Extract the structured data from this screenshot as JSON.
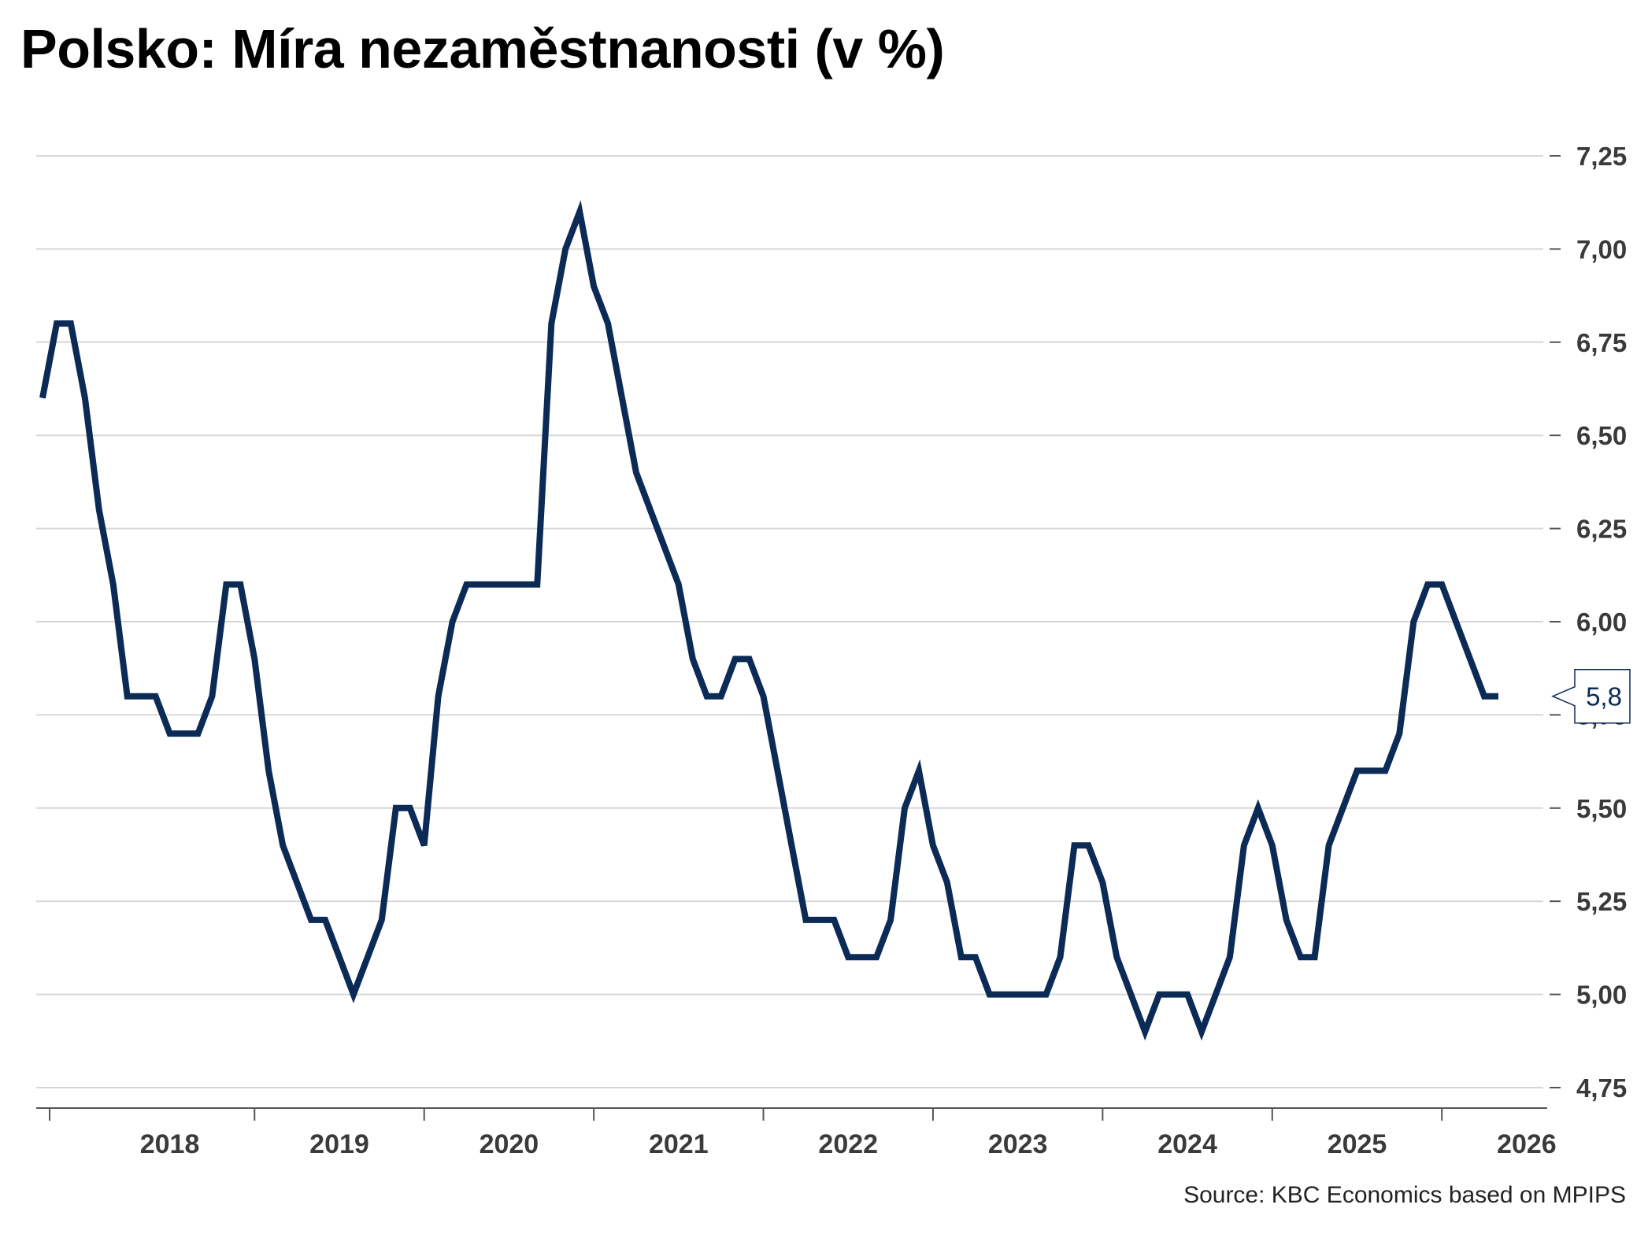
{
  "title": "Polsko: Míra nezaměstnanosti (v %)",
  "source": "Source: KBC Economics based on MPIPS",
  "colors": {
    "line": "#0b2a56",
    "grid": "#d7d7d7",
    "axis": "#555555",
    "tick_text": "#3a3a3a"
  },
  "chart_data": {
    "type": "line",
    "title": "Polsko: Míra nezaměstnanosti (v %)",
    "xlabel": "",
    "ylabel": "",
    "x_tick_labels": [
      "2018",
      "2019",
      "2020",
      "2021",
      "2022",
      "2023",
      "2024",
      "2025",
      "2026"
    ],
    "y_tick_labels": [
      "4,75",
      "5,00",
      "5,25",
      "5,50",
      "5,75",
      "6,00",
      "6,25",
      "6,50",
      "6,75",
      "7,00",
      "7,25"
    ],
    "ylim": [
      4.75,
      7.25
    ],
    "y_axis_position": "right",
    "grid": true,
    "last_value_label": "5,8",
    "series": [
      {
        "values": [
          6.6,
          6.8,
          6.8,
          6.6,
          6.3,
          6.1,
          5.8,
          5.8,
          5.8,
          5.7,
          5.7,
          5.7,
          5.8,
          6.1,
          6.1,
          5.9,
          5.6,
          5.4,
          5.3,
          5.2,
          5.2,
          5.1,
          5.0,
          5.1,
          5.2,
          5.5,
          5.5,
          5.4,
          5.8,
          6.0,
          6.1,
          6.1,
          6.1,
          6.1,
          6.1,
          6.1,
          6.8,
          7.0,
          7.1,
          6.9,
          6.8,
          6.6,
          6.4,
          6.3,
          6.2,
          6.1,
          5.9,
          5.8,
          5.8,
          5.9,
          5.9,
          5.8,
          5.6,
          5.4,
          5.2,
          5.2,
          5.2,
          5.1,
          5.1,
          5.1,
          5.2,
          5.5,
          5.6,
          5.4,
          5.3,
          5.1,
          5.1,
          5.0,
          5.0,
          5.0,
          5.0,
          5.0,
          5.1,
          5.4,
          5.4,
          5.3,
          5.1,
          5.0,
          4.9,
          5.0,
          5.0,
          5.0,
          4.9,
          5.0,
          5.1,
          5.4,
          5.5,
          5.4,
          5.2,
          5.1,
          5.1,
          5.4,
          5.5,
          5.6,
          5.6,
          5.6,
          5.7,
          6.0,
          6.1,
          6.1,
          6.0,
          5.9,
          5.8,
          5.8
        ]
      }
    ]
  }
}
